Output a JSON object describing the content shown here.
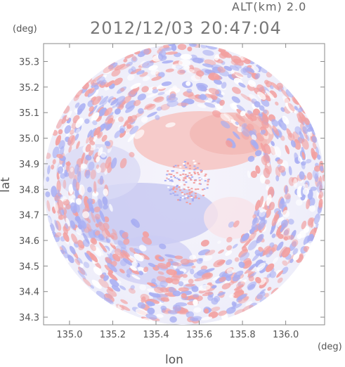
{
  "header": {
    "altitude": "ALT(km) 2.0",
    "datetime": "2012/12/03 20:47:04"
  },
  "axes": {
    "y_unit": "(deg)",
    "x_unit": "(deg)",
    "xlabel": "lon",
    "ylabel": "lat",
    "x_ticks": [
      "135.0",
      "135.2",
      "135.4",
      "135.6",
      "135.8",
      "136.0"
    ],
    "y_ticks": [
      "35.3",
      "35.2",
      "35.1",
      "35.0",
      "34.9",
      "34.8",
      "34.7",
      "34.6",
      "34.5",
      "34.4",
      "34.3"
    ],
    "x_range": [
      134.88,
      136.18
    ],
    "y_range": [
      34.27,
      35.37
    ]
  },
  "colors": {
    "positive": "#f2a0a0",
    "negative": "#a8aef2",
    "background_field": "#f4f2fb",
    "frame": "#888888"
  }
}
